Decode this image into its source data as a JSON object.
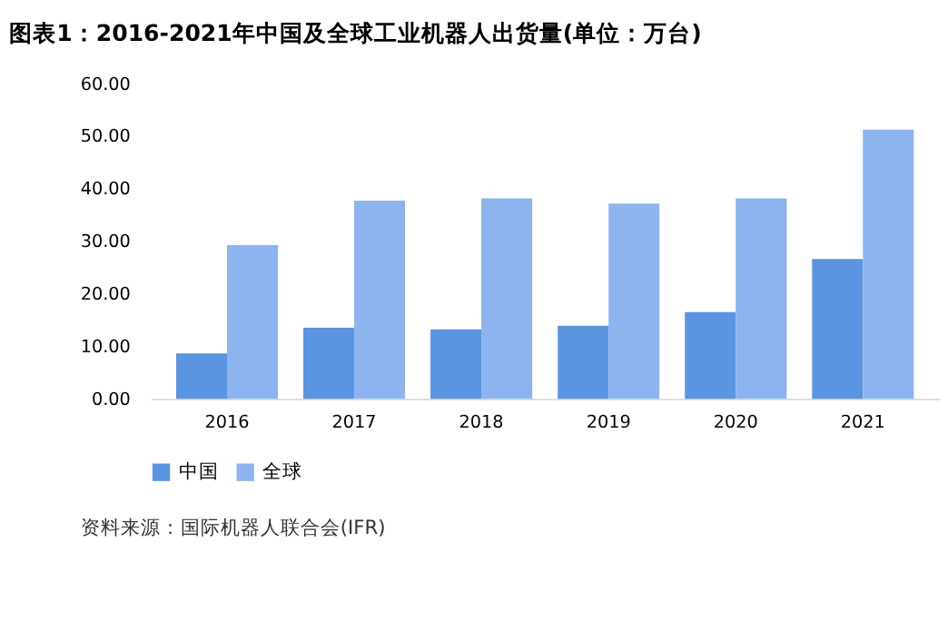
{
  "chart_data": {
    "type": "bar",
    "title": "图表1：2016-2021年中国及全球工业机器人出货量(单位：万台)",
    "categories": [
      "2016",
      "2017",
      "2018",
      "2019",
      "2020",
      "2021"
    ],
    "series": [
      {
        "name": "中国",
        "color": "#5b94e1",
        "values": [
          8.6,
          13.5,
          13.2,
          13.9,
          16.5,
          26.6
        ]
      },
      {
        "name": "全球",
        "color": "#8db4ef",
        "values": [
          29.2,
          37.7,
          38.1,
          37.1,
          38.1,
          51.2
        ]
      }
    ],
    "ylim": [
      0,
      60
    ],
    "yticks": [
      {
        "value": 0,
        "label": "0.00"
      },
      {
        "value": 10,
        "label": "10.00"
      },
      {
        "value": 20,
        "label": "20.00"
      },
      {
        "value": 30,
        "label": "30.00"
      },
      {
        "value": 40,
        "label": "40.00"
      },
      {
        "value": 50,
        "label": "50.00"
      },
      {
        "value": 60,
        "label": "60.00"
      }
    ],
    "grid": false,
    "legend": "bottom",
    "annotations": [
      "资料来源：国际机器人联合会(IFR)"
    ]
  }
}
